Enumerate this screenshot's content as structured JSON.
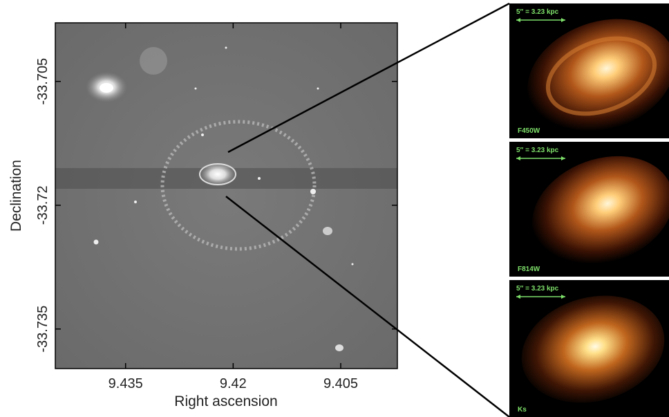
{
  "chart_data": {
    "type": "image",
    "xlabel": "Right ascension",
    "ylabel": "Declination",
    "xlim": [
      9.4448,
      9.3971
    ],
    "xticks": [
      9.435,
      9.42,
      9.405
    ],
    "ylim": [
      -33.7398,
      -33.6979
    ],
    "yticks": [
      -33.735,
      -33.72,
      -33.705
    ],
    "panels": [
      {
        "band": "F450W",
        "scale": "5″ = 3.23 kpc"
      },
      {
        "band": "F814W",
        "scale": "5″ = 3.23 kpc"
      },
      {
        "band": "Ks",
        "scale": "5″ = 3.23 kpc"
      }
    ]
  }
}
